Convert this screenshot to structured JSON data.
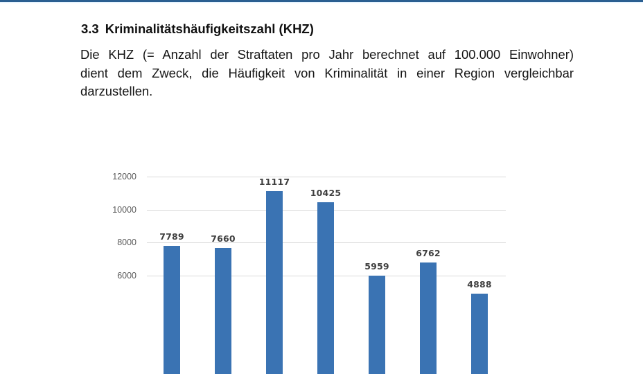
{
  "document": {
    "section_number": "3.3",
    "section_title": "Kriminalitätshäufigkeitszahl (KHZ)",
    "paragraph_lines": [
      "Die KHZ (= Anzahl der Straftaten pro Jahr berechnet auf 100.000 Einwohner)",
      "dient dem Zweck, die Häufigkeit von Kriminalität in einer Region vergleichbar",
      "darzustellen."
    ],
    "header_bar_color": "#2b5f91"
  },
  "chart_data": {
    "type": "bar",
    "title": "",
    "xlabel": "",
    "ylabel": "",
    "categories": [
      "",
      "",
      "",
      "",
      "",
      "",
      ""
    ],
    "values": [
      7789,
      7660,
      11117,
      10425,
      5959,
      6762,
      4888
    ],
    "data_labels": [
      "7789",
      "7660",
      "11117",
      "10425",
      "5959",
      "6762",
      "4888"
    ],
    "y_ticks": [
      "12000",
      "10000",
      "8000",
      "6000"
    ],
    "ylim": [
      0,
      12000
    ],
    "grid": true,
    "legend": null,
    "bar_color": "#3a73b3",
    "note": "Chart cropped at bottom; lower axis ticks and category labels not visible"
  }
}
